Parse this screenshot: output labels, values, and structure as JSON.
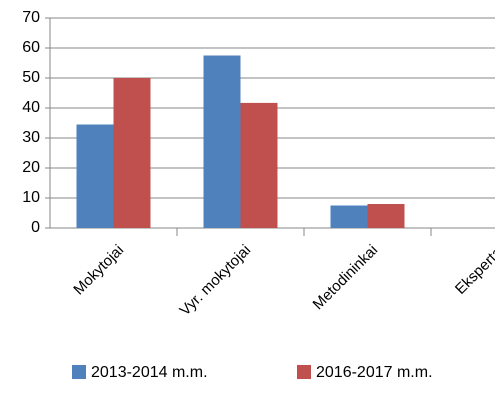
{
  "chart_data": {
    "type": "bar",
    "categories": [
      "Mokytojai",
      "Vyr. mokytojai",
      "Metodininkai",
      "Ekspertai"
    ],
    "series": [
      {
        "name": "2013-2014 m.m.",
        "color": "#4f81bd",
        "values": [
          34.5,
          57.5,
          7.5,
          0
        ]
      },
      {
        "name": "2016-2017 m.m.",
        "color": "#c0504d",
        "values": [
          50,
          41.7,
          8,
          0
        ]
      }
    ],
    "ylim": [
      0,
      70
    ],
    "yticks": [
      0,
      10,
      20,
      30,
      40,
      50,
      60,
      70
    ],
    "grid": true,
    "legend": "bottom"
  }
}
